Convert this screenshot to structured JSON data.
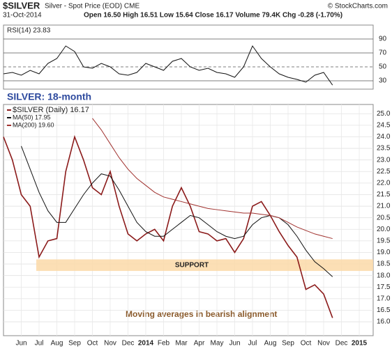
{
  "header": {
    "symbol": "$SILVER",
    "name": "Silver - Spot Price (EOD) CME",
    "date": "31-Oct-2014",
    "quote": "Open 16.50 High 16.51 Low 15.64 Close 16.17 Volume 79.4K Chg -0.28 (-1.70%)",
    "source": "© StockCharts.com"
  },
  "chart_data": [
    {
      "type": "line",
      "title": "RSI(14) 23.83",
      "color": "#111111",
      "values": [
        40,
        42,
        38,
        45,
        40,
        55,
        62,
        80,
        72,
        50,
        48,
        55,
        50,
        40,
        38,
        42,
        55,
        50,
        45,
        58,
        62,
        50,
        45,
        48,
        42,
        40,
        35,
        50,
        80,
        62,
        50,
        40,
        35,
        32,
        28,
        38,
        42,
        23.83,
        null,
        null,
        null,
        null
      ],
      "ylim": [
        18,
        110
      ],
      "yticks": [
        30,
        50,
        70,
        90
      ],
      "annotation": "SILVER: 18-month"
    },
    {
      "type": "line",
      "grid": true,
      "categories": [
        null,
        null,
        "Jun",
        null,
        "Jul",
        null,
        "Aug",
        null,
        "Sep",
        null,
        "Oct",
        null,
        "Nov",
        null,
        "Dec",
        null,
        "2014",
        null,
        "Feb",
        null,
        "Mar",
        null,
        "Apr",
        null,
        "May",
        null,
        "Jun",
        null,
        "Jul",
        null,
        "Aug",
        null,
        "Sep",
        null,
        "Oct",
        null,
        "Nov",
        null,
        "Dec",
        null,
        "2015",
        null
      ],
      "series": [
        {
          "name": "$SILVER (Daily) 16.17",
          "color": "#8b1a1a",
          "values": [
            24.0,
            23.0,
            21.5,
            21.0,
            18.8,
            19.5,
            19.6,
            22.5,
            24.0,
            23.0,
            21.8,
            21.5,
            22.5,
            21.0,
            19.8,
            19.5,
            19.8,
            20.0,
            19.5,
            21.0,
            21.8,
            21.0,
            19.9,
            19.8,
            19.5,
            19.6,
            19.0,
            19.6,
            21.0,
            21.2,
            20.6,
            19.9,
            19.3,
            18.8,
            17.4,
            17.6,
            17.2,
            16.17,
            null,
            null,
            null,
            null
          ]
        },
        {
          "name": "MA(50) 17.95",
          "color": "#111111",
          "values": [
            null,
            null,
            23.6,
            22.6,
            21.6,
            20.8,
            20.3,
            20.3,
            20.9,
            21.5,
            22.0,
            22.4,
            22.3,
            21.7,
            21.0,
            20.3,
            19.9,
            19.7,
            19.7,
            20.0,
            20.3,
            20.6,
            20.5,
            20.2,
            19.9,
            19.7,
            19.6,
            19.7,
            20.2,
            20.5,
            20.6,
            20.5,
            20.2,
            19.7,
            19.1,
            18.6,
            18.3,
            17.95,
            null,
            null,
            null,
            null
          ]
        },
        {
          "name": "MA(200) 19.60",
          "color": "#a0312e",
          "values": [
            null,
            null,
            null,
            null,
            null,
            null,
            null,
            null,
            null,
            null,
            24.8,
            24.3,
            23.7,
            23.1,
            22.6,
            22.2,
            21.9,
            21.6,
            21.4,
            21.3,
            21.2,
            21.1,
            21.0,
            20.9,
            20.85,
            20.8,
            20.75,
            20.7,
            20.7,
            20.65,
            20.6,
            20.5,
            20.3,
            20.1,
            19.95,
            19.8,
            19.7,
            19.6,
            null,
            null,
            null,
            null
          ]
        }
      ],
      "ylim": [
        15.4,
        25.4
      ],
      "yticks": [
        {
          "value": 16,
          "label": "16.0"
        },
        16.5,
        {
          "value": 17,
          "label": "17.0"
        },
        17.5,
        {
          "value": 18,
          "label": "18.0"
        },
        18.5,
        {
          "value": 19,
          "label": "19.0"
        },
        19.5,
        {
          "value": 20,
          "label": "20.0"
        },
        20.5,
        {
          "value": 21,
          "label": "21.0"
        },
        21.5,
        {
          "value": 22,
          "label": "22.0"
        },
        22.5,
        {
          "value": 23,
          "label": "23.0"
        },
        23.5,
        {
          "value": 24,
          "label": "24.0"
        },
        24.5,
        {
          "value": 25,
          "label": "25.0"
        }
      ],
      "band": {
        "label": "SUPPORT",
        "range": [
          18.2,
          18.7
        ],
        "color": "#fbd9a8"
      },
      "annotation": "Moving averages in bearish alignment"
    }
  ]
}
